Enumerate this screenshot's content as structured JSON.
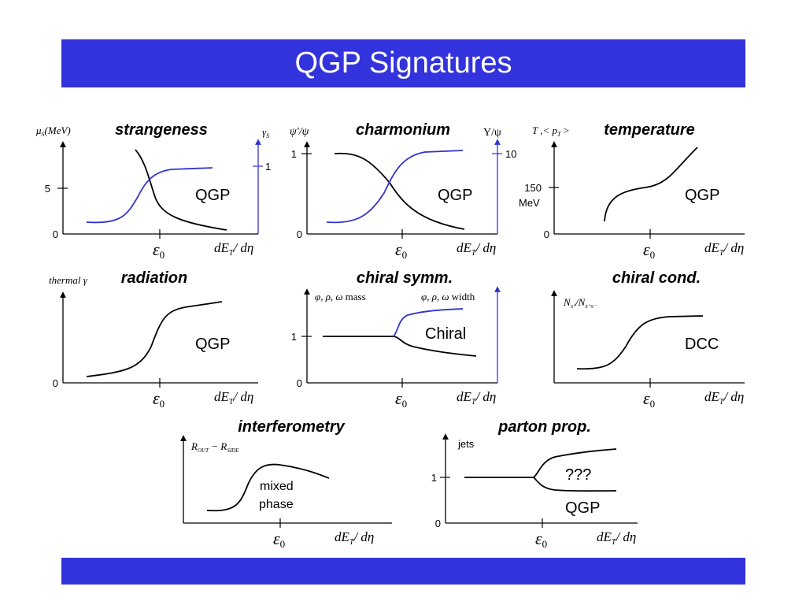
{
  "title": "QGP Signatures",
  "colors": {
    "banner": "#3333dd",
    "curve": "#000000",
    "second_curve": "#3333cc"
  },
  "common": {
    "x_label": "dE",
    "x_label_sub": "T",
    "x_label_rest": "/ dη",
    "epsilon_label": "ε",
    "epsilon_sub": "0"
  },
  "panels": {
    "strangeness": {
      "title": "strangeness",
      "left_axis": "μ",
      "left_axis_sub": "S",
      "left_axis_unit": "(MeV)",
      "left_tick": "5",
      "zero": "0",
      "right_axis": "γ",
      "right_axis_sub": "S",
      "right_tick": "1",
      "label": "QGP"
    },
    "charmonium": {
      "title": "charmonium",
      "left_axis": "ψ′/ψ",
      "left_tick": "1",
      "zero": "0",
      "right_axis": "Υ/ψ",
      "right_tick": "10",
      "label": "QGP"
    },
    "temperature": {
      "title": "temperature",
      "left_axis": "T ,< p",
      "left_axis_sub": "T",
      "left_axis_end": " >",
      "tick_value": "150",
      "tick_unit": "MeV",
      "zero": "0",
      "label": "QGP"
    },
    "radiation": {
      "title": "radiation",
      "left_axis": "thermal γ",
      "zero": "0",
      "label": "QGP"
    },
    "chiral_symm": {
      "title": "chiral symm.",
      "left_axis": "φ, ρ, ω",
      "left_axis_word": "mass",
      "right_axis": "φ, ρ, ω",
      "right_axis_word": "width",
      "left_tick": "1",
      "zero": "0",
      "label": "Chiral"
    },
    "chiral_cond": {
      "title": "chiral cond.",
      "left_axis": "N",
      "left_axis_sub": "π⁰",
      "left_axis_mid": "/N",
      "left_axis_sub2": "π⁺π⁻",
      "label": "DCC"
    },
    "interferometry": {
      "title": "interferometry",
      "left_axis": "R",
      "left_axis_sub": "OUT",
      "left_axis_mid": " − R",
      "left_axis_sub2": "SIDE",
      "label_line1": "mixed",
      "label_line2": "phase"
    },
    "parton": {
      "title": "parton prop.",
      "left_axis": "jets",
      "left_tick": "1",
      "zero": "0",
      "label_upper": "???",
      "label_lower": "QGP"
    }
  }
}
